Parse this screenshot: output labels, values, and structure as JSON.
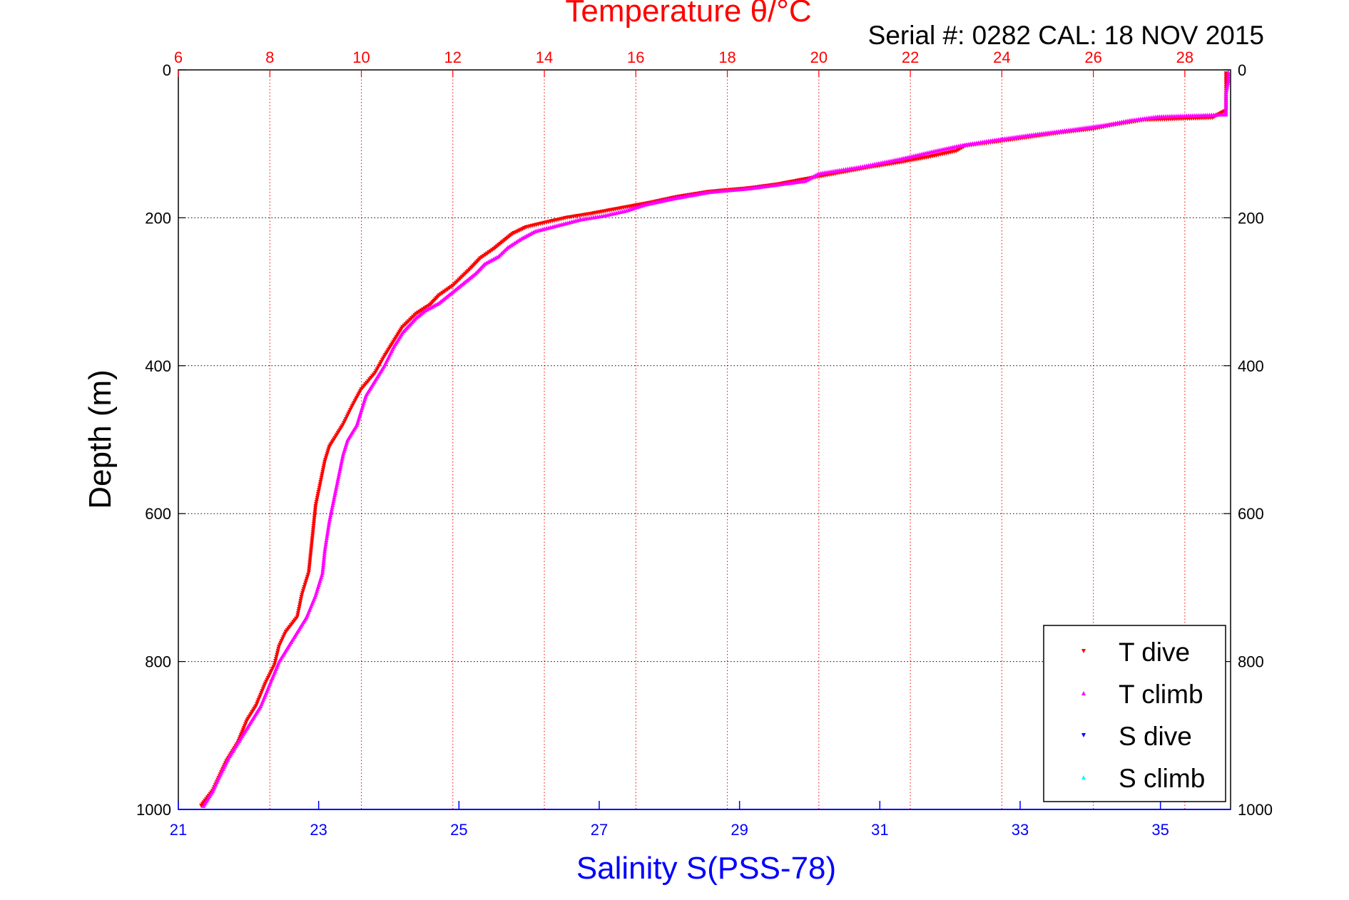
{
  "chart_data": {
    "type": "scatter",
    "title": "Temperature θ/°C",
    "subtitle": "Serial #: 0282  CAL: 18 NOV 2015",
    "ylabel": "Depth (m)",
    "xlabel": "Salinity S(PSS-78)",
    "top_axis": {
      "label": "Temperature θ/°C",
      "range": [
        6,
        29
      ],
      "ticks": [
        6,
        8,
        10,
        12,
        14,
        16,
        18,
        20,
        22,
        24,
        26,
        28
      ],
      "color": "#ff0000",
      "grid": true
    },
    "bottom_axis": {
      "label": "Salinity S(PSS-78)",
      "range": [
        21,
        36
      ],
      "ticks": [
        21,
        23,
        25,
        27,
        29,
        31,
        33,
        35
      ],
      "color": "#0000ff"
    },
    "y_axis": {
      "label": "Depth (m)",
      "range": [
        0,
        1000
      ],
      "reversed": true,
      "ticks": [
        0,
        200,
        400,
        600,
        800,
        1000
      ],
      "grid": true
    },
    "legend": {
      "placement": "bottom-right",
      "entries": [
        {
          "name": "T dive",
          "color": "#ff0000",
          "marker": "triangle-down"
        },
        {
          "name": "T climb",
          "color": "#ff00ff",
          "marker": "triangle-up"
        },
        {
          "name": "S dive",
          "color": "#0000ff",
          "marker": "triangle-down"
        },
        {
          "name": "S climb",
          "color": "#00ffff",
          "marker": "triangle-up"
        }
      ]
    },
    "series": [
      {
        "name": "T dive",
        "axis": "temperature",
        "color": "#ff0000",
        "marker": "triangle-down",
        "points": [
          [
            28.9,
            5
          ],
          [
            28.9,
            20
          ],
          [
            28.9,
            40
          ],
          [
            28.9,
            55
          ],
          [
            28.6,
            65
          ],
          [
            27.1,
            68
          ],
          [
            26.4,
            75
          ],
          [
            26,
            80
          ],
          [
            25.3,
            85
          ],
          [
            24.5,
            92
          ],
          [
            23.8,
            98
          ],
          [
            23.2,
            103
          ],
          [
            23,
            110
          ],
          [
            22.4,
            118
          ],
          [
            21.8,
            125
          ],
          [
            21.1,
            132
          ],
          [
            20.4,
            140
          ],
          [
            19.7,
            148
          ],
          [
            19.1,
            155
          ],
          [
            18.5,
            160
          ],
          [
            17.6,
            165
          ],
          [
            16.9,
            172
          ],
          [
            16.3,
            180
          ],
          [
            15.6,
            188
          ],
          [
            15,
            195
          ],
          [
            14.5,
            200
          ],
          [
            14,
            207
          ],
          [
            13.6,
            213
          ],
          [
            13.3,
            222
          ],
          [
            13.1,
            232
          ],
          [
            12.9,
            242
          ],
          [
            12.6,
            255
          ],
          [
            12.4,
            268
          ],
          [
            12.2,
            280
          ],
          [
            12,
            292
          ],
          [
            11.7,
            305
          ],
          [
            11.5,
            318
          ],
          [
            11.2,
            330
          ],
          [
            10.9,
            348
          ],
          [
            10.7,
            368
          ],
          [
            10.5,
            388
          ],
          [
            10.3,
            410
          ],
          [
            10,
            432
          ],
          [
            9.8,
            455
          ],
          [
            9.6,
            480
          ],
          [
            9.4,
            500
          ],
          [
            9.3,
            510
          ],
          [
            9.2,
            530
          ],
          [
            9.1,
            560
          ],
          [
            9,
            590
          ],
          [
            8.95,
            620
          ],
          [
            8.9,
            650
          ],
          [
            8.85,
            680
          ],
          [
            8.7,
            710
          ],
          [
            8.6,
            740
          ],
          [
            8.35,
            760
          ],
          [
            8.2,
            780
          ],
          [
            8.1,
            805
          ],
          [
            7.9,
            830
          ],
          [
            7.7,
            860
          ],
          [
            7.5,
            880
          ],
          [
            7.3,
            910
          ],
          [
            7.05,
            935
          ],
          [
            6.9,
            955
          ],
          [
            6.75,
            975
          ],
          [
            6.5,
            995
          ]
        ]
      },
      {
        "name": "T climb",
        "axis": "temperature",
        "color": "#ff00ff",
        "marker": "triangle-up",
        "points": [
          [
            28.95,
            3
          ],
          [
            28.95,
            15
          ],
          [
            28.9,
            30
          ],
          [
            28.9,
            45
          ],
          [
            28.9,
            60
          ],
          [
            27.4,
            63
          ],
          [
            26.8,
            68
          ],
          [
            26.3,
            74
          ],
          [
            25.6,
            80
          ],
          [
            24.6,
            88
          ],
          [
            23.8,
            95
          ],
          [
            23.1,
            102
          ],
          [
            22.5,
            110
          ],
          [
            21.8,
            120
          ],
          [
            21,
            130
          ],
          [
            20.4,
            136
          ],
          [
            20,
            140
          ],
          [
            19.7,
            150
          ],
          [
            19.1,
            155
          ],
          [
            18.5,
            160
          ],
          [
            17.6,
            165
          ],
          [
            16.8,
            174
          ],
          [
            16.2,
            182
          ],
          [
            15.8,
            190
          ],
          [
            15.3,
            197
          ],
          [
            14.8,
            202
          ],
          [
            14.3,
            210
          ],
          [
            13.8,
            218
          ],
          [
            13.5,
            228
          ],
          [
            13.2,
            240
          ],
          [
            13,
            252
          ],
          [
            12.7,
            262
          ],
          [
            12.5,
            275
          ],
          [
            12.2,
            290
          ],
          [
            12,
            300
          ],
          [
            11.7,
            315
          ],
          [
            11.4,
            325
          ],
          [
            11.2,
            335
          ],
          [
            10.9,
            355
          ],
          [
            10.7,
            375
          ],
          [
            10.5,
            400
          ],
          [
            10.3,
            420
          ],
          [
            10.1,
            440
          ],
          [
            10,
            460
          ],
          [
            9.9,
            480
          ],
          [
            9.7,
            500
          ],
          [
            9.6,
            520
          ],
          [
            9.5,
            550
          ],
          [
            9.4,
            580
          ],
          [
            9.3,
            610
          ],
          [
            9.2,
            650
          ],
          [
            9.15,
            680
          ],
          [
            9,
            710
          ],
          [
            8.8,
            740
          ],
          [
            8.6,
            760
          ],
          [
            8.4,
            780
          ],
          [
            8.2,
            800
          ],
          [
            8,
            830
          ],
          [
            7.8,
            860
          ],
          [
            7.6,
            880
          ],
          [
            7.35,
            905
          ],
          [
            7.1,
            930
          ],
          [
            6.9,
            955
          ],
          [
            6.75,
            975
          ],
          [
            6.55,
            995
          ]
        ]
      }
    ]
  }
}
